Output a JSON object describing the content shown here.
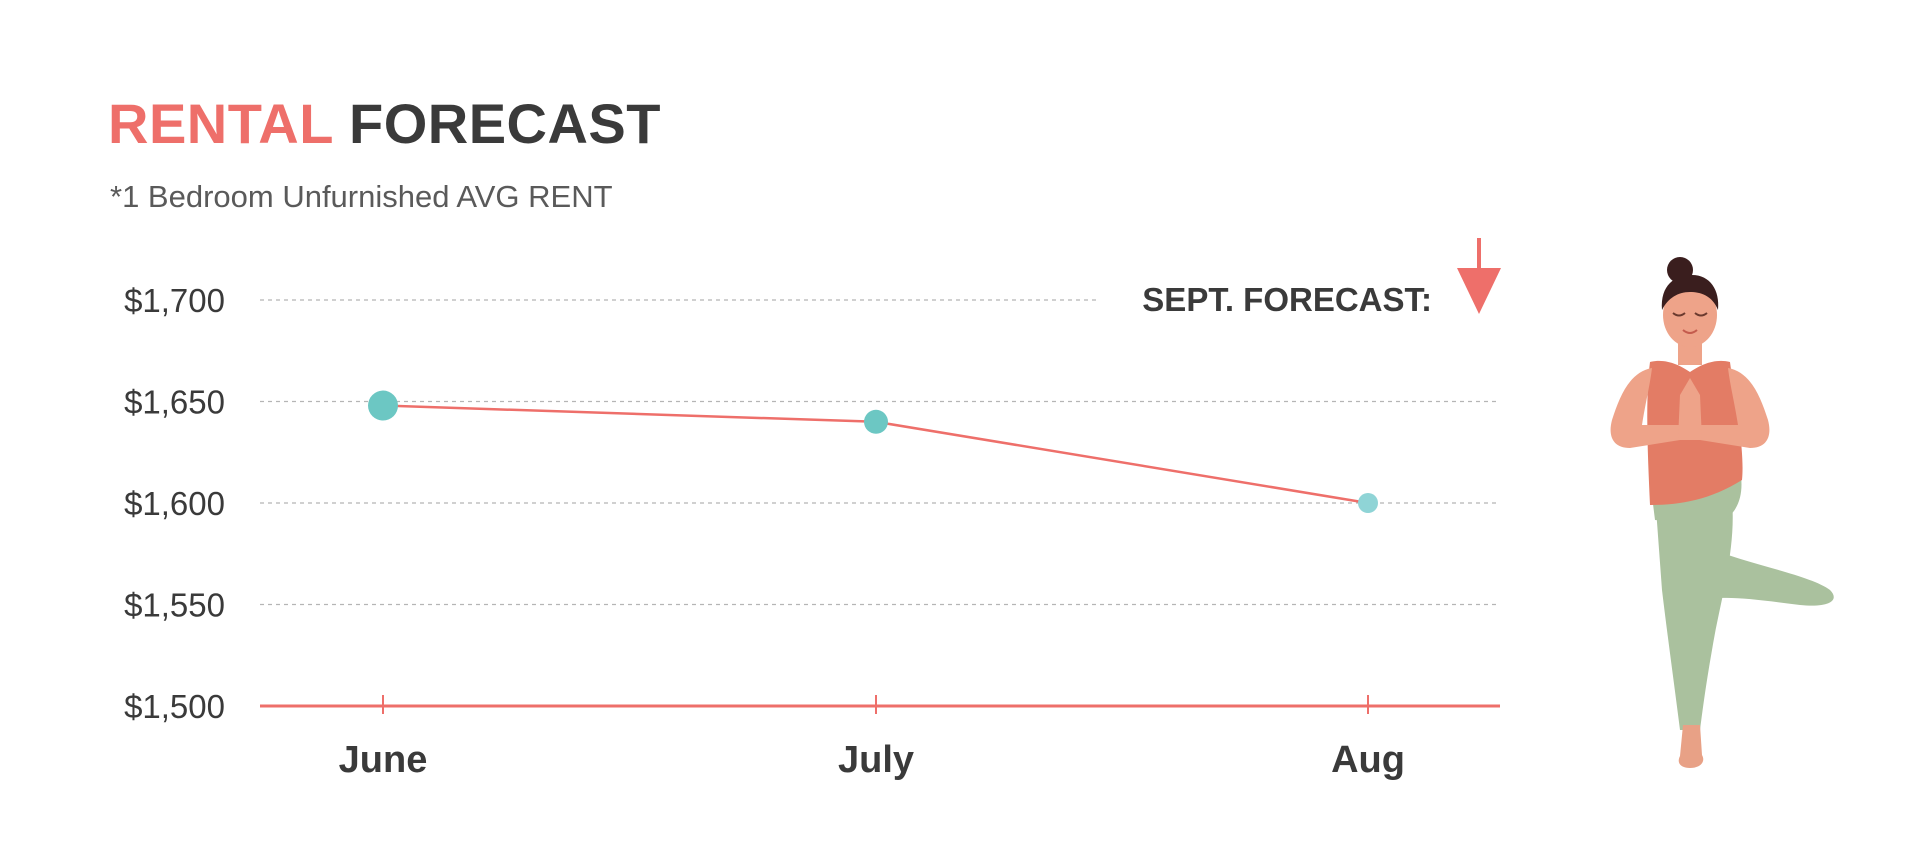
{
  "header": {
    "title_accent": "RENTAL",
    "title_main": "FORECAST",
    "subtitle": "*1 Bedroom Unfurnished AVG RENT"
  },
  "forecast": {
    "label": "SEPT. FORECAST:",
    "direction": "down",
    "icon": "down-arrow-icon"
  },
  "illustration": {
    "icon": "yoga-woman-tree-pose-icon"
  },
  "colors": {
    "accent": "#ee6f6a",
    "marker": "#6cc7c3",
    "marker_light": "#8fd4d6",
    "text": "#3a3a3a",
    "grid": "#b5b5b5"
  },
  "chart_data": {
    "type": "line",
    "categories": [
      "June",
      "July",
      "Aug"
    ],
    "series": [
      {
        "values": [
          1648,
          1640,
          1600
        ]
      }
    ],
    "yticks": [
      1500,
      1550,
      1600,
      1650,
      1700
    ],
    "ytick_labels": [
      "$1,500",
      "$1,550",
      "$1,600",
      "$1,650",
      "$1,700"
    ],
    "ylim": [
      1500,
      1700
    ],
    "grid": true,
    "xlabel": "",
    "ylabel": ""
  }
}
